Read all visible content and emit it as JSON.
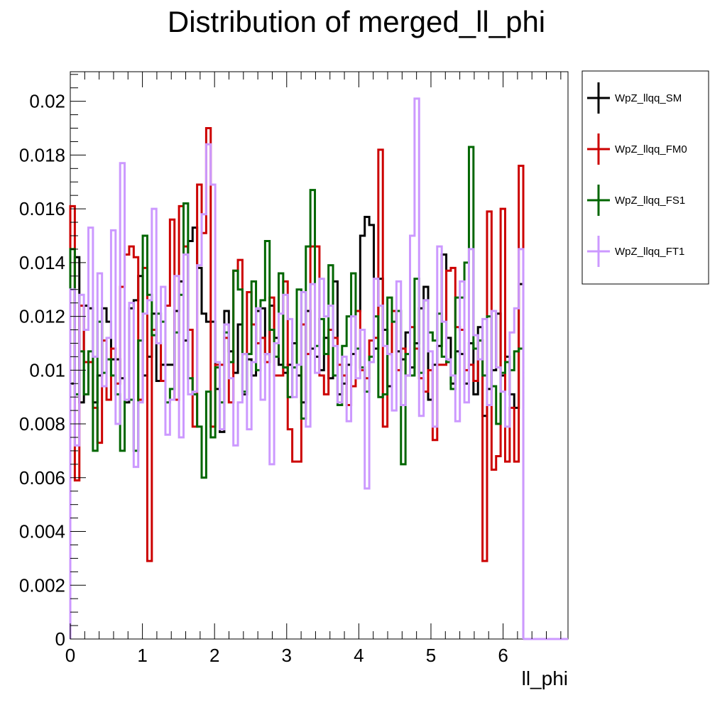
{
  "chart_data": {
    "type": "line",
    "title": "Distribution of merged_ll_phi",
    "xlabel": "ll_phi",
    "ylabel": "",
    "xlim": [
      0,
      6.9
    ],
    "ylim": [
      0,
      0.0211
    ],
    "xticks": [
      0,
      1,
      2,
      3,
      4,
      5,
      6
    ],
    "xtick_labels": [
      "0",
      "1",
      "2",
      "3",
      "4",
      "5",
      "6"
    ],
    "yticks": [
      0,
      0.002,
      0.004,
      0.006,
      0.008,
      0.01,
      0.012,
      0.014,
      0.016,
      0.018,
      0.02
    ],
    "ytick_labels": [
      "0",
      "0.002",
      "0.004",
      "0.006",
      "0.008",
      "0.01",
      "0.012",
      "0.014",
      "0.016",
      "0.018",
      "0.02"
    ],
    "grid": false,
    "legend_position": "outside-right-top",
    "bin_edges_start": 0,
    "bin_width": 0.0628,
    "nbins": 100,
    "series": [
      {
        "name": "WpZ_llqq_SM",
        "color": "#000000",
        "values": [
          0.0095,
          0.0142,
          0.0088,
          0.0124,
          0.0123,
          0.0088,
          0.0098,
          0.0123,
          0.0118,
          0.0104,
          0.0104,
          0.0097,
          0.0088,
          0.0123,
          0.0126,
          0.0135,
          0.0098,
          0.0105,
          0.0121,
          0.0096,
          0.0102,
          0.0102,
          0.0102,
          0.0122,
          0.0133,
          0.0111,
          0.0148,
          0.0153,
          0.0138,
          0.0121,
          0.0118,
          0.0118,
          0.0093,
          0.0077,
          0.0122,
          0.0107,
          0.0099,
          0.0117,
          0.0091,
          0.0104,
          0.0098,
          0.0122,
          0.0123,
          0.0106,
          0.0124,
          0.0112,
          0.0102,
          0.0099,
          0.0102,
          0.011,
          0.0098,
          0.0088,
          0.0122,
          0.0108,
          0.0105,
          0.01,
          0.0112,
          0.0097,
          0.0133,
          0.0091,
          0.0095,
          0.0102,
          0.0106,
          0.0122,
          0.015,
          0.0157,
          0.0154,
          0.0108,
          0.0134,
          0.0115,
          0.0094,
          0.0122,
          0.0107,
          0.0104,
          0.0114,
          0.0101,
          0.011,
          0.0123,
          0.0131,
          0.0089,
          0.0102,
          0.0109,
          0.0143,
          0.0112,
          0.0095,
          0.0107,
          0.0106,
          0.0095,
          0.011,
          0.0091,
          0.0116,
          0.0083,
          0.0093,
          0.01,
          0.0121,
          0.0098,
          0.0105,
          0.0091,
          0.0086,
          0.0132
        ]
      },
      {
        "name": "WpZ_llqq_FM0",
        "color": "#cc0000",
        "values": [
          0.0161,
          0.0059,
          0.0124,
          0.0103,
          0.0103,
          0.0086,
          0.0073,
          0.0111,
          0.0089,
          0.0108,
          0.0095,
          0.0131,
          0.0143,
          0.0146,
          0.0142,
          0.0089,
          0.0138,
          0.0029,
          0.0115,
          0.011,
          0.0096,
          0.0124,
          0.0156,
          0.0089,
          0.0161,
          0.0146,
          0.0115,
          0.0079,
          0.0169,
          0.0151,
          0.019,
          0.0079,
          0.0102,
          0.0102,
          0.0112,
          0.0088,
          0.0137,
          0.0141,
          0.0106,
          0.0129,
          0.0117,
          0.011,
          0.0112,
          0.0103,
          0.0127,
          0.0098,
          0.0098,
          0.0133,
          0.0078,
          0.0066,
          0.0066,
          0.0117,
          0.0106,
          0.0146,
          0.0146,
          0.0098,
          0.0091,
          0.0115,
          0.0112,
          0.0102,
          0.0098,
          0.0087,
          0.0094,
          0.0122,
          0.01,
          0.0097,
          0.0111,
          0.0112,
          0.0182,
          0.0079,
          0.0106,
          0.0122,
          0.01,
          0.0108,
          0.0098,
          0.0116,
          0.0108,
          0.0097,
          0.0092,
          0.01,
          0.0074,
          0.0102,
          0.0102,
          0.0137,
          0.0138,
          0.0116,
          0.0115,
          0.01,
          0.0102,
          0.0096,
          0.0111,
          0.0029,
          0.0159,
          0.0063,
          0.0068,
          0.016,
          0.0066,
          0.0086,
          0.0066,
          0.0176
        ]
      },
      {
        "name": "WpZ_llqq_FS1",
        "color": "#006600",
        "values": [
          0.0145,
          0.0091,
          0.0107,
          0.0091,
          0.0107,
          0.007,
          0.0118,
          0.0099,
          0.0104,
          0.0098,
          0.0091,
          0.007,
          0.0089,
          0.0089,
          0.007,
          0.0111,
          0.015,
          0.0128,
          0.0113,
          0.0121,
          0.0118,
          0.0088,
          0.0093,
          0.0114,
          0.0128,
          0.0162,
          0.0097,
          0.0091,
          0.0079,
          0.006,
          0.0092,
          0.0075,
          0.0101,
          0.0088,
          0.0114,
          0.0103,
          0.0137,
          0.013,
          0.0092,
          0.0106,
          0.0133,
          0.01,
          0.0126,
          0.0148,
          0.0115,
          0.0105,
          0.0136,
          0.0101,
          0.009,
          0.0101,
          0.013,
          0.0082,
          0.0146,
          0.0167,
          0.0109,
          0.0119,
          0.0106,
          0.0139,
          0.0098,
          0.0087,
          0.0109,
          0.012,
          0.0136,
          0.0108,
          0.0101,
          0.0092,
          0.0105,
          0.012,
          0.009,
          0.0091,
          0.0127,
          0.0118,
          0.0122,
          0.0065,
          0.0106,
          0.0098,
          0.0134,
          0.0099,
          0.0126,
          0.0114,
          0.0111,
          0.0121,
          0.0105,
          0.0103,
          0.0093,
          0.0127,
          0.0127,
          0.014,
          0.0183,
          0.0108,
          0.0111,
          0.0098,
          0.012,
          0.0094,
          0.008,
          0.0099,
          0.0103,
          0.01,
          0.0107,
          0.0108
        ]
      },
      {
        "name": "WpZ_llqq_FT1",
        "color": "#cc99ff",
        "values": [
          0.013,
          0.0072,
          0.0128,
          0.0115,
          0.0153,
          0.0105,
          0.0136,
          0.0094,
          0.0112,
          0.0152,
          0.008,
          0.0177,
          0.0089,
          0.0125,
          0.0064,
          0.0088,
          0.0121,
          0.0126,
          0.016,
          0.011,
          0.0131,
          0.0076,
          0.0089,
          0.0135,
          0.0075,
          0.0143,
          0.0091,
          0.0092,
          0.0139,
          0.0158,
          0.0184,
          0.0169,
          0.0103,
          0.0078,
          0.0117,
          0.0097,
          0.0072,
          0.0088,
          0.0106,
          0.0078,
          0.0103,
          0.0123,
          0.0089,
          0.0106,
          0.0065,
          0.011,
          0.0121,
          0.0128,
          0.0119,
          0.009,
          0.0102,
          0.0129,
          0.0079,
          0.0132,
          0.0099,
          0.0134,
          0.012,
          0.0124,
          0.0109,
          0.0088,
          0.0105,
          0.0081,
          0.012,
          0.0097,
          0.0115,
          0.0056,
          0.0103,
          0.0134,
          0.0124,
          0.0109,
          0.0106,
          0.0085,
          0.0133,
          0.0087,
          0.0098,
          0.015,
          0.0201,
          0.0083,
          0.0126,
          0.0107,
          0.0079,
          0.0146,
          0.0118,
          0.0104,
          0.0098,
          0.0081,
          0.0133,
          0.0088,
          0.0145,
          0.0113,
          0.0104,
          0.0119,
          0.0087,
          0.0122,
          0.0101,
          0.0092,
          0.0079,
          0.0114,
          0.0123,
          0.0145
        ]
      }
    ]
  }
}
